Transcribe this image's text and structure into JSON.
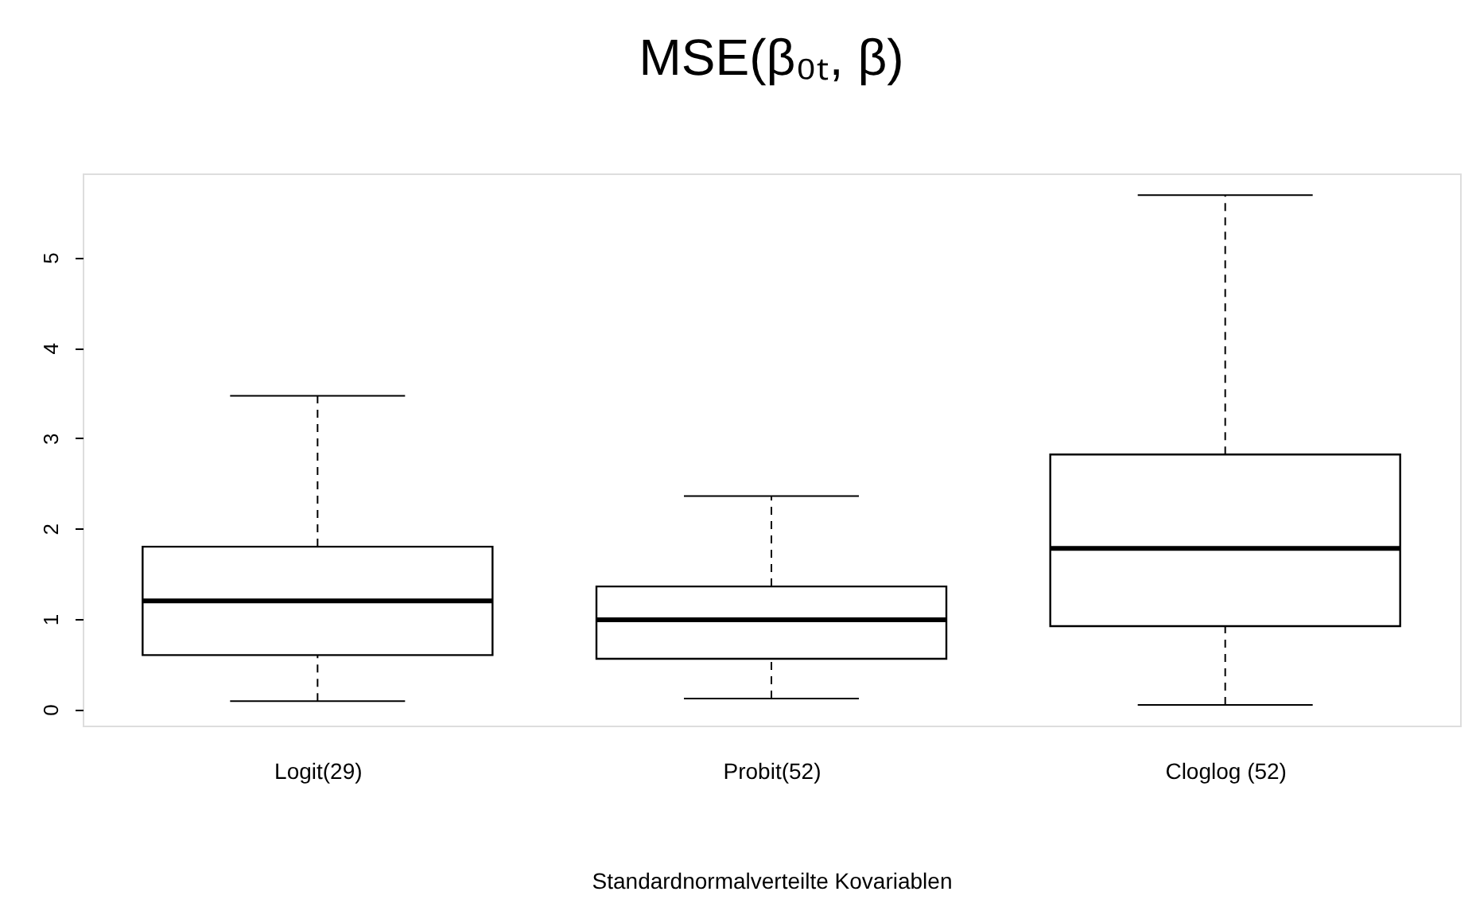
{
  "chart_data": {
    "type": "box",
    "title": "MSE(β₀ₜ, β)",
    "xlabel": "Standardnormalverteilte Kovariablen",
    "categories": [
      "Logit(29)",
      "Probit(52)",
      "Cloglog (52)"
    ],
    "boxes": [
      {
        "low": 0.09,
        "q1": 0.6,
        "median": 1.2,
        "q3": 1.8,
        "high": 3.47
      },
      {
        "low": 0.12,
        "q1": 0.56,
        "median": 0.99,
        "q3": 1.36,
        "high": 2.36
      },
      {
        "low": 0.05,
        "q1": 0.92,
        "median": 1.78,
        "q3": 2.82,
        "high": 5.69
      }
    ],
    "ylim": [
      -0.18,
      5.93
    ],
    "yticks": [
      0,
      1,
      2,
      3,
      4,
      5
    ]
  }
}
